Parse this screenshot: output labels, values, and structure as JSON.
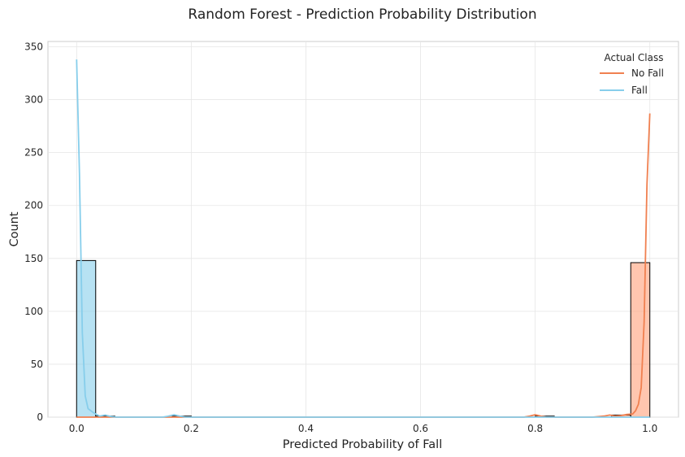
{
  "chart_data": {
    "type": "bar",
    "title": "Random Forest - Prediction Probability Distribution",
    "xlabel": "Predicted Probability of Fall",
    "ylabel": "Count",
    "xlim": [
      -0.05,
      1.05
    ],
    "ylim": [
      0,
      355
    ],
    "xticks": [
      0.0,
      0.2,
      0.4,
      0.6,
      0.8,
      1.0
    ],
    "xtick_labels": [
      "0.0",
      "0.2",
      "0.4",
      "0.6",
      "0.8",
      "1.0"
    ],
    "yticks": [
      0,
      50,
      100,
      150,
      200,
      250,
      300,
      350
    ],
    "ytick_labels": [
      "0",
      "50",
      "100",
      "150",
      "200",
      "250",
      "300",
      "350"
    ],
    "grid": true,
    "legend": {
      "title": "Actual Class",
      "placement": "top-right",
      "entries": [
        {
          "label": "No Fall",
          "color": "#f08050"
        },
        {
          "label": "Fall",
          "color": "#87ceeb"
        }
      ]
    },
    "bin_edges": [
      0.0,
      0.0333,
      0.0667,
      0.1,
      0.1333,
      0.1667,
      0.2,
      0.2333,
      0.2667,
      0.3,
      0.3333,
      0.3667,
      0.4,
      0.4333,
      0.4667,
      0.5,
      0.5333,
      0.5667,
      0.6,
      0.6333,
      0.6667,
      0.7,
      0.7333,
      0.7667,
      0.8,
      0.8333,
      0.8667,
      0.9,
      0.9333,
      0.9667,
      1.0
    ],
    "series": [
      {
        "name": "No Fall",
        "color": "#f08050",
        "fill": "#ffa07a",
        "counts": [
          0,
          0,
          0,
          0,
          0,
          0,
          0,
          0,
          0,
          0,
          0,
          0,
          0,
          0,
          0,
          0,
          0,
          0,
          0,
          0,
          0,
          0,
          0,
          0,
          1,
          0,
          0,
          0,
          2,
          146
        ],
        "kde_x": [
          0.0,
          0.5,
          0.78,
          0.79,
          0.8,
          0.81,
          0.82,
          0.9,
          0.92,
          0.93,
          0.94,
          0.95,
          0.96,
          0.97,
          0.975,
          0.98,
          0.985,
          0.99,
          0.995,
          1.0
        ],
        "kde_y": [
          0,
          0,
          0,
          1,
          2.2,
          1,
          0,
          0,
          1,
          2,
          1,
          1.5,
          2.5,
          3,
          6,
          12,
          28,
          90,
          220,
          287
        ]
      },
      {
        "name": "Fall",
        "color": "#87ceeb",
        "fill": "#87ceeb",
        "counts": [
          148,
          1,
          0,
          0,
          0,
          1,
          0,
          0,
          0,
          0,
          0,
          0,
          0,
          0,
          0,
          0,
          0,
          0,
          0,
          0,
          0,
          0,
          0,
          0,
          0,
          0,
          0,
          0,
          0,
          0
        ],
        "kde_x": [
          0.0,
          0.005,
          0.01,
          0.015,
          0.02,
          0.03,
          0.04,
          0.05,
          0.06,
          0.07,
          0.15,
          0.16,
          0.17,
          0.18,
          0.19,
          0.3,
          1.0
        ],
        "kde_y": [
          338,
          230,
          80,
          20,
          8,
          4,
          1,
          2,
          0.5,
          0,
          0,
          1,
          2.2,
          1,
          0,
          0,
          0
        ]
      }
    ]
  }
}
